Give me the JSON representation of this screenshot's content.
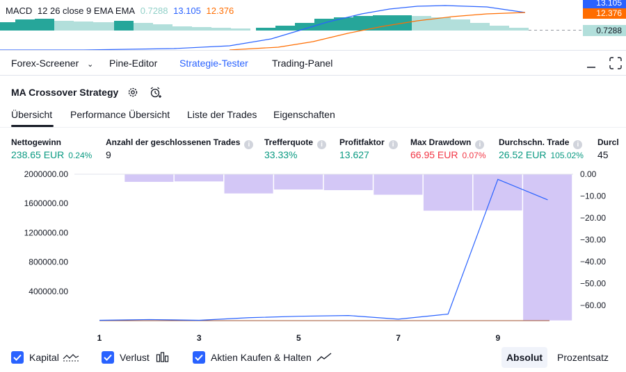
{
  "macd": {
    "label": "MACD",
    "params": "12 26 close 9 EMA EMA",
    "hist_value": "0.7288",
    "macd_value": "13.105",
    "signal_value": "12.376",
    "colors": {
      "hist_value": "#91d0c8",
      "macd": "#2962ff",
      "signal": "#ff6d00",
      "hist_up": "#26a69a",
      "hist_light": "#b2dfdb"
    }
  },
  "toolbar": {
    "forex_screener": "Forex-Screener",
    "pine_editor": "Pine-Editor",
    "strategy_tester": "Strategie-Tester",
    "trading_panel": "Trading-Panel"
  },
  "strategy": {
    "title": "MA Crossover Strategy"
  },
  "tabs": [
    "Übersicht",
    "Performance Übersicht",
    "Liste der Trades",
    "Eigenschaften"
  ],
  "metrics": [
    {
      "label": "Nettogewinn",
      "value": "238.65 EUR",
      "pct": "0.24%",
      "color": "green"
    },
    {
      "label": "Anzahl der geschlossenen Trades",
      "value": "9",
      "pct": "",
      "color": "neutral"
    },
    {
      "label": "Trefferquote",
      "value": "33.33%",
      "pct": "",
      "color": "green"
    },
    {
      "label": "Profitfaktor",
      "value": "13.627",
      "pct": "",
      "color": "green"
    },
    {
      "label": "Max Drawdown",
      "value": "66.95 EUR",
      "pct": "0.07%",
      "color": "red"
    },
    {
      "label": "Durchschn. Trade",
      "value": "26.52 EUR",
      "pct": "105.02%",
      "color": "green"
    },
    {
      "label": "Durcl",
      "value": "45",
      "pct": "",
      "color": "neutral"
    }
  ],
  "chart_data": {
    "type": "bar",
    "x_ticks": [
      "1",
      "3",
      "5",
      "7",
      "9"
    ],
    "left_axis_ticks": [
      "2000000.00",
      "1600000.00",
      "1200000.00",
      "800000.00",
      "400000.00"
    ],
    "right_axis_ticks": [
      "0.00",
      "−10.00",
      "−20.00",
      "−30.00",
      "−40.00",
      "−50.00",
      "−60.00"
    ],
    "left_ylim": [
      0,
      2000000
    ],
    "right_ylim": [
      -67,
      0
    ],
    "drawdown_bars": {
      "name": "Verlust",
      "x": [
        2,
        3,
        4,
        5,
        6,
        7,
        8,
        9,
        10
      ],
      "values": [
        -3.5,
        -3.3,
        -8.8,
        -7,
        -7.3,
        -9.4,
        -16.7,
        -16.6,
        -66.9
      ]
    },
    "equity_line": {
      "name": "Kapital",
      "x": [
        1,
        2,
        3,
        4,
        5,
        6,
        7,
        8,
        9,
        10
      ],
      "values": [
        5000,
        15000,
        5000,
        40000,
        60000,
        70000,
        20000,
        90000,
        1930000,
        1650000
      ]
    },
    "buy_hold_line": {
      "name": "Aktien Kaufen & Halten"
    }
  },
  "legend": {
    "kapital": "Kapital",
    "verlust": "Verlust",
    "buy_hold": "Aktien Kaufen & Halten"
  },
  "buttons": {
    "absolute": "Absolut",
    "percent": "Prozentsatz"
  }
}
